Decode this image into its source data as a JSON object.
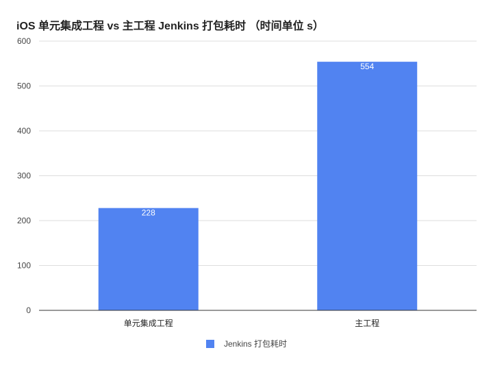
{
  "chart_data": {
    "type": "bar",
    "title": "iOS 单元集成工程 vs 主工程 Jenkins 打包耗时 （时间单位 s）",
    "categories": [
      "单元集成工程",
      "主工程"
    ],
    "series": [
      {
        "name": "Jenkins 打包耗时",
        "values": [
          228,
          554
        ],
        "color": "#5183f1"
      }
    ],
    "ylim": [
      0,
      600
    ],
    "yticks": [
      0,
      100,
      200,
      300,
      400,
      500,
      600
    ],
    "xlabel": "",
    "ylabel": "",
    "grid": true,
    "legend_position": "bottom",
    "data_labels": true
  },
  "colors": {
    "bar": "#5183f1",
    "grid": "#dddddd",
    "axis": "#333333",
    "data_label": "#ffffff"
  }
}
